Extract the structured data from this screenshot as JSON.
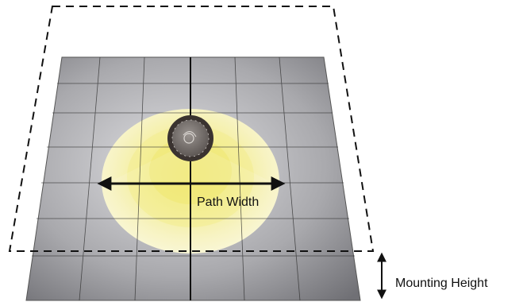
{
  "labels": {
    "path_width": "Path Width",
    "mounting_height": "Mounting Height"
  },
  "colors": {
    "floor_light": "#c9c9cc",
    "floor_dark": "#6c6c70",
    "grid_line": "#2b2b2b",
    "light_pool_outer": "#f7f4c4",
    "light_pool_inner": "#f2ea7a",
    "fixture_ring": "#3a3330",
    "fixture_body": "#7a7470",
    "dashed_outline": "#111111",
    "arrow": "#111111"
  }
}
